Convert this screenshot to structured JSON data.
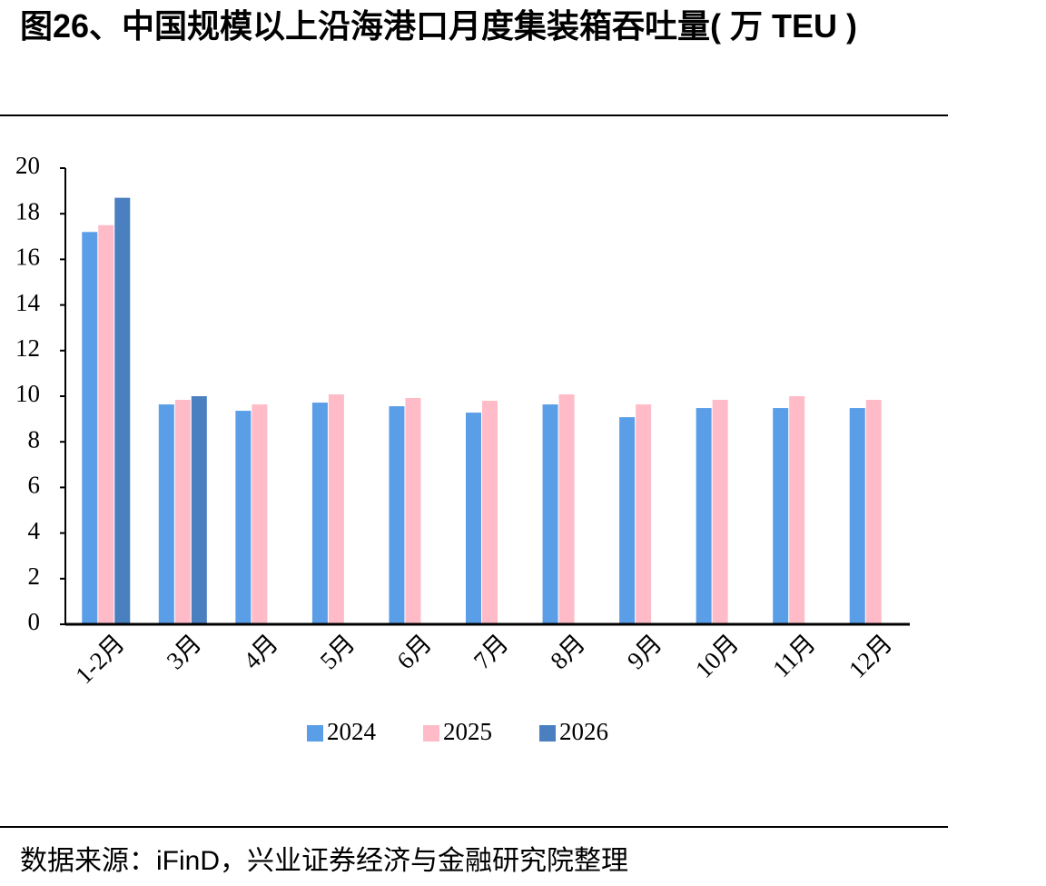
{
  "chart_data": {
    "type": "bar",
    "title": "图26、中国规模以上沿海港口月度集装箱吞吐量( 万 TEU )",
    "source": "数据来源：iFinD，兴业证券经济与金融研究院整理",
    "categories": [
      "1-2月",
      "3月",
      "4月",
      "5月",
      "6月",
      "7月",
      "8月",
      "9月",
      "10月",
      "11月",
      "12月"
    ],
    "series": [
      {
        "name": "2024",
        "color": "#5b9ee8",
        "values": [
          17.2,
          9.64,
          9.36,
          9.72,
          9.56,
          9.28,
          9.64,
          9.08,
          9.48,
          9.48,
          9.48
        ]
      },
      {
        "name": "2025",
        "color": "#ffbcc8",
        "values": [
          17.5,
          9.84,
          9.64,
          10.08,
          9.92,
          9.8,
          10.08,
          9.64,
          9.84,
          10.0,
          9.84
        ]
      },
      {
        "name": "2026",
        "color": "#4a7fc0",
        "values": [
          18.7,
          10.0,
          null,
          null,
          null,
          null,
          null,
          null,
          null,
          null,
          null
        ]
      }
    ],
    "ylim": [
      0,
      20
    ],
    "yticks": [
      0,
      2,
      4,
      6,
      8,
      10,
      12,
      14,
      16,
      18,
      20
    ],
    "grid": false,
    "legend": "bottom"
  }
}
